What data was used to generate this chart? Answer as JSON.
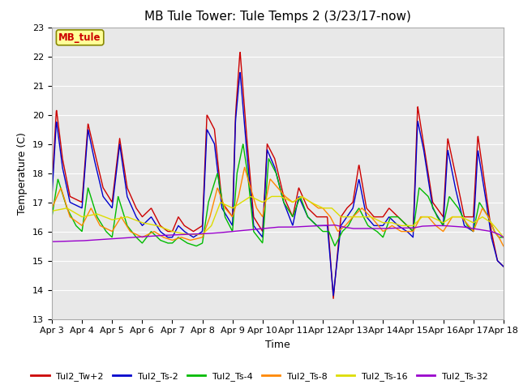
{
  "title": "MB Tule Tower: Tule Temps 2 (3/23/17-now)",
  "xlabel": "Time",
  "ylabel": "Temperature (C)",
  "ylim": [
    13.0,
    23.0
  ],
  "yticks": [
    13.0,
    14.0,
    15.0,
    16.0,
    17.0,
    18.0,
    19.0,
    20.0,
    21.0,
    22.0,
    23.0
  ],
  "xtick_labels": [
    "Apr 3",
    "Apr 4",
    "Apr 5",
    "Apr 6",
    "Apr 7",
    "Apr 8",
    "Apr 9",
    "Apr 10",
    "Apr 11",
    "Apr 12",
    "Apr 13",
    "Apr 14",
    "Apr 15",
    "Apr 16",
    "Apr 17",
    "Apr 18"
  ],
  "legend_label": "MB_tule",
  "series_colors": {
    "Tul2_Tw+2": "#cc0000",
    "Tul2_Ts-2": "#0000cc",
    "Tul2_Ts-4": "#00bb00",
    "Tul2_Ts-8": "#ff8800",
    "Tul2_Ts-16": "#dddd00",
    "Tul2_Ts-32": "#9900cc"
  },
  "fig_facecolor": "#ffffff",
  "ax_facecolor": "#e8e8e8",
  "grid_color": "#ffffff",
  "title_fontsize": 11,
  "axis_fontsize": 9,
  "tick_fontsize": 8,
  "legend_fontsize": 8
}
